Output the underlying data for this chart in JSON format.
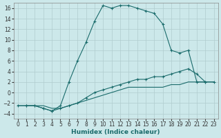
{
  "xlabel": "Humidex (Indice chaleur)",
  "bg_color": "#cce8ea",
  "grid_color": "#b8d8da",
  "line_color": "#1a6b6b",
  "xlim": [
    -0.5,
    23.5
  ],
  "ylim": [
    -5,
    17
  ],
  "yticks": [
    -4,
    -2,
    0,
    2,
    4,
    6,
    8,
    10,
    12,
    14,
    16
  ],
  "xticks": [
    0,
    1,
    2,
    3,
    4,
    5,
    6,
    7,
    8,
    9,
    10,
    11,
    12,
    13,
    14,
    15,
    16,
    17,
    18,
    19,
    20,
    21,
    22,
    23
  ],
  "series": [
    {
      "x": [
        0,
        1,
        2,
        3,
        4,
        5,
        6,
        7,
        8,
        9,
        10,
        11,
        12,
        13,
        14,
        15,
        16,
        17,
        18,
        19,
        20,
        21,
        22,
        23
      ],
      "y": [
        -2.5,
        -2.5,
        -2.5,
        -2.5,
        -3.0,
        -3.0,
        -2.5,
        -2.0,
        -1.5,
        -1.0,
        -0.5,
        0.0,
        0.5,
        1.0,
        1.0,
        1.0,
        1.0,
        1.0,
        1.5,
        1.5,
        2.0,
        2.0,
        2.0,
        2.0
      ],
      "marker": false
    },
    {
      "x": [
        0,
        1,
        2,
        3,
        4,
        5,
        6,
        7,
        8,
        9,
        10,
        11,
        12,
        13,
        14,
        15,
        16,
        17,
        18,
        19,
        20,
        21,
        22,
        23
      ],
      "y": [
        -2.5,
        -2.5,
        -2.5,
        -3.0,
        -3.5,
        -3.0,
        -2.5,
        -2.0,
        -1.0,
        0.0,
        0.5,
        1.0,
        1.5,
        2.0,
        2.5,
        2.5,
        3.0,
        3.0,
        3.5,
        4.0,
        4.5,
        3.5,
        2.0,
        2.0
      ],
      "marker": true
    },
    {
      "x": [
        1,
        2,
        3,
        4,
        5,
        6,
        7,
        8,
        9,
        10,
        11,
        12,
        13,
        14,
        15,
        16,
        17,
        18,
        19,
        20,
        21,
        22
      ],
      "y": [
        -2.5,
        -2.5,
        -3.0,
        -3.5,
        -2.5,
        2.0,
        6.0,
        9.5,
        13.5,
        16.5,
        16.0,
        16.5,
        16.5,
        16.0,
        15.5,
        15.0,
        13.0,
        8.0,
        7.5,
        8.0,
        2.0,
        2.0
      ],
      "marker": true
    }
  ]
}
